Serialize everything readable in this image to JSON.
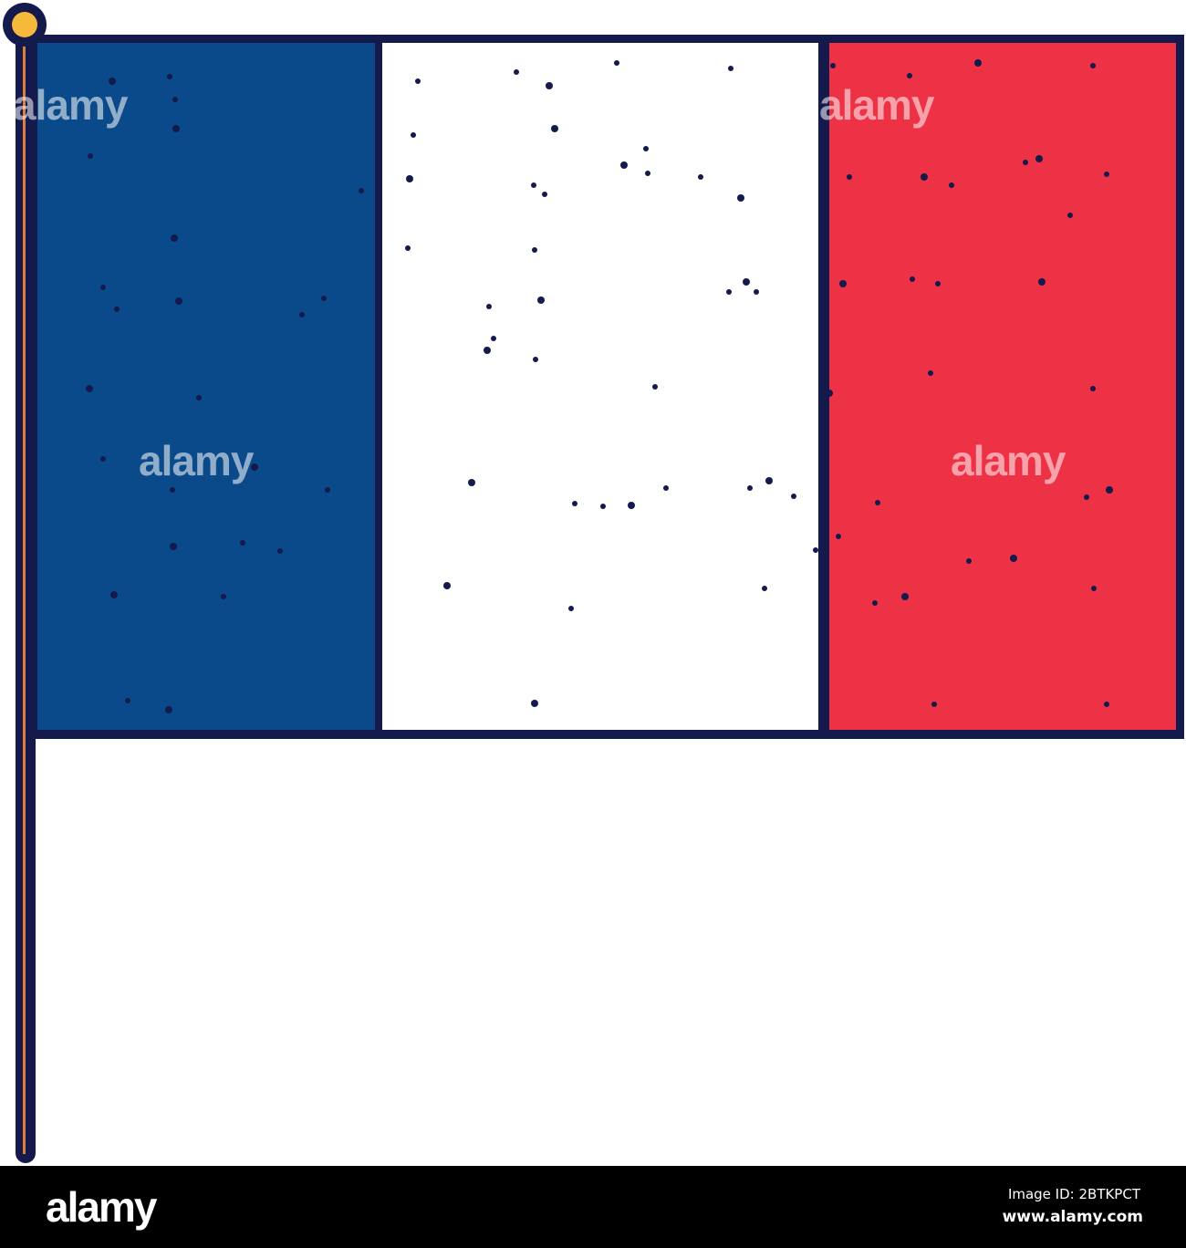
{
  "colors": {
    "outline": "#141a4c",
    "blue": "#0a4a8b",
    "white": "#ffffff",
    "red": "#ee3246",
    "pole": "#141a4c",
    "pole_highlight": "#e07f3d",
    "finial": "#f6b93b"
  },
  "watermark": "alamy",
  "footer": {
    "logo": "alamy",
    "image_id": "Image ID: 2BTKPCT",
    "site": "www.alamy.com"
  }
}
